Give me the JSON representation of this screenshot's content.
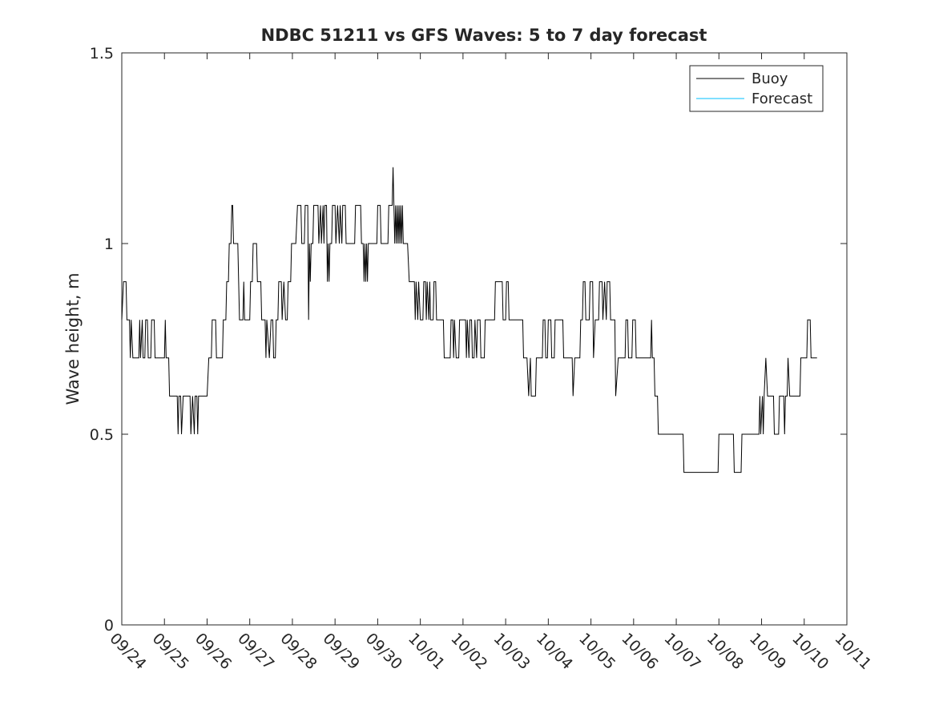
{
  "chart_data": {
    "type": "line",
    "title": "NDBC 51211 vs GFS Waves: 5 to 7 day forecast",
    "xlabel": "",
    "ylabel": "Wave height, m",
    "x_ticks": [
      "09/24",
      "09/25",
      "09/26",
      "09/27",
      "09/28",
      "09/29",
      "09/30",
      "10/01",
      "10/02",
      "10/03",
      "10/04",
      "10/05",
      "10/06",
      "10/07",
      "10/08",
      "10/09",
      "10/10",
      "10/11"
    ],
    "y_ticks": [
      "0",
      "0.5",
      "1",
      "1.5"
    ],
    "ylim": [
      0,
      1.5
    ],
    "x_unit": "days since 09/24 00:00",
    "xlim": [
      0,
      17
    ],
    "grid": false,
    "legend_position": "top-right",
    "series": [
      {
        "name": "Buoy",
        "color": "#000000",
        "points": [
          [
            0.0,
            0.8
          ],
          [
            0.04,
            0.9
          ],
          [
            0.1,
            0.9
          ],
          [
            0.12,
            0.8
          ],
          [
            0.18,
            0.8
          ],
          [
            0.2,
            0.7
          ],
          [
            0.22,
            0.8
          ],
          [
            0.26,
            0.7
          ],
          [
            0.4,
            0.7
          ],
          [
            0.42,
            0.8
          ],
          [
            0.44,
            0.7
          ],
          [
            0.48,
            0.8
          ],
          [
            0.5,
            0.7
          ],
          [
            0.54,
            0.7
          ],
          [
            0.56,
            0.8
          ],
          [
            0.6,
            0.8
          ],
          [
            0.62,
            0.7
          ],
          [
            0.68,
            0.7
          ],
          [
            0.7,
            0.8
          ],
          [
            0.76,
            0.8
          ],
          [
            0.78,
            0.7
          ],
          [
            1.0,
            0.7
          ],
          [
            1.02,
            0.8
          ],
          [
            1.04,
            0.7
          ],
          [
            1.1,
            0.7
          ],
          [
            1.12,
            0.6
          ],
          [
            1.3,
            0.6
          ],
          [
            1.32,
            0.5
          ],
          [
            1.34,
            0.6
          ],
          [
            1.38,
            0.6
          ],
          [
            1.4,
            0.5
          ],
          [
            1.44,
            0.6
          ],
          [
            1.6,
            0.6
          ],
          [
            1.62,
            0.5
          ],
          [
            1.66,
            0.6
          ],
          [
            1.7,
            0.5
          ],
          [
            1.72,
            0.6
          ],
          [
            1.76,
            0.6
          ],
          [
            1.78,
            0.5
          ],
          [
            1.8,
            0.6
          ],
          [
            2.0,
            0.6
          ],
          [
            2.04,
            0.7
          ],
          [
            2.1,
            0.7
          ],
          [
            2.12,
            0.8
          ],
          [
            2.2,
            0.8
          ],
          [
            2.22,
            0.7
          ],
          [
            2.36,
            0.7
          ],
          [
            2.38,
            0.8
          ],
          [
            2.44,
            0.8
          ],
          [
            2.46,
            0.9
          ],
          [
            2.5,
            0.9
          ],
          [
            2.52,
            1.0
          ],
          [
            2.56,
            1.0
          ],
          [
            2.58,
            1.1
          ],
          [
            2.6,
            1.1
          ],
          [
            2.62,
            1.0
          ],
          [
            2.72,
            1.0
          ],
          [
            2.74,
            0.9
          ],
          [
            2.76,
            0.8
          ],
          [
            2.84,
            0.8
          ],
          [
            2.86,
            0.9
          ],
          [
            2.88,
            0.8
          ],
          [
            3.0,
            0.8
          ],
          [
            3.02,
            0.9
          ],
          [
            3.06,
            0.9
          ],
          [
            3.08,
            1.0
          ],
          [
            3.16,
            1.0
          ],
          [
            3.18,
            0.9
          ],
          [
            3.26,
            0.9
          ],
          [
            3.28,
            0.8
          ],
          [
            3.36,
            0.8
          ],
          [
            3.38,
            0.7
          ],
          [
            3.4,
            0.8
          ],
          [
            3.46,
            0.7
          ],
          [
            3.5,
            0.8
          ],
          [
            3.54,
            0.8
          ],
          [
            3.56,
            0.7
          ],
          [
            3.6,
            0.7
          ],
          [
            3.62,
            0.8
          ],
          [
            3.66,
            0.8
          ],
          [
            3.68,
            0.9
          ],
          [
            3.74,
            0.9
          ],
          [
            3.76,
            0.8
          ],
          [
            3.8,
            0.9
          ],
          [
            3.84,
            0.8
          ],
          [
            3.88,
            0.8
          ],
          [
            3.9,
            0.9
          ],
          [
            3.96,
            0.9
          ],
          [
            3.98,
            1.0
          ],
          [
            4.06,
            1.0
          ],
          [
            4.08,
            1.0
          ],
          [
            4.12,
            1.1
          ],
          [
            4.2,
            1.1
          ],
          [
            4.22,
            1.0
          ],
          [
            4.28,
            1.0
          ],
          [
            4.3,
            1.1
          ],
          [
            4.36,
            1.1
          ],
          [
            4.38,
            0.8
          ],
          [
            4.4,
            1.0
          ],
          [
            4.42,
            0.9
          ],
          [
            4.44,
            1.0
          ],
          [
            4.48,
            1.0
          ],
          [
            4.5,
            1.1
          ],
          [
            4.6,
            1.1
          ],
          [
            4.62,
            1.0
          ],
          [
            4.66,
            1.1
          ],
          [
            4.68,
            1.0
          ],
          [
            4.72,
            1.1
          ],
          [
            4.74,
            1.0
          ],
          [
            4.76,
            1.1
          ],
          [
            4.8,
            1.1
          ],
          [
            4.82,
            0.9
          ],
          [
            4.84,
            1.0
          ],
          [
            4.86,
            0.9
          ],
          [
            4.88,
            1.0
          ],
          [
            4.92,
            1.0
          ],
          [
            4.94,
            1.1
          ],
          [
            5.0,
            1.1
          ],
          [
            5.02,
            1.0
          ],
          [
            5.06,
            1.1
          ],
          [
            5.1,
            1.0
          ],
          [
            5.12,
            1.1
          ],
          [
            5.16,
            1.0
          ],
          [
            5.18,
            1.1
          ],
          [
            5.24,
            1.1
          ],
          [
            5.26,
            1.0
          ],
          [
            5.46,
            1.0
          ],
          [
            5.48,
            1.1
          ],
          [
            5.6,
            1.1
          ],
          [
            5.62,
            1.0
          ],
          [
            5.66,
            1.0
          ],
          [
            5.68,
            0.9
          ],
          [
            5.7,
            1.0
          ],
          [
            5.72,
            0.9
          ],
          [
            5.74,
            1.0
          ],
          [
            5.76,
            0.9
          ],
          [
            5.78,
            1.0
          ],
          [
            5.98,
            1.0
          ],
          [
            6.0,
            1.1
          ],
          [
            6.06,
            1.1
          ],
          [
            6.08,
            1.0
          ],
          [
            6.24,
            1.0
          ],
          [
            6.26,
            1.1
          ],
          [
            6.32,
            1.1
          ],
          [
            6.34,
            1.1
          ],
          [
            6.36,
            1.2
          ],
          [
            6.38,
            1.1
          ],
          [
            6.4,
            1.0
          ],
          [
            6.42,
            1.1
          ],
          [
            6.44,
            1.0
          ],
          [
            6.46,
            1.1
          ],
          [
            6.48,
            1.0
          ],
          [
            6.5,
            1.1
          ],
          [
            6.52,
            1.0
          ],
          [
            6.54,
            1.1
          ],
          [
            6.56,
            1.0
          ],
          [
            6.58,
            1.1
          ],
          [
            6.6,
            1.0
          ],
          [
            6.7,
            1.0
          ],
          [
            6.74,
            0.9
          ],
          [
            6.86,
            0.9
          ],
          [
            6.88,
            0.8
          ],
          [
            6.9,
            0.9
          ],
          [
            6.94,
            0.8
          ],
          [
            6.96,
            0.9
          ],
          [
            7.0,
            0.8
          ],
          [
            7.06,
            0.8
          ],
          [
            7.08,
            0.9
          ],
          [
            7.12,
            0.9
          ],
          [
            7.14,
            0.8
          ],
          [
            7.16,
            0.9
          ],
          [
            7.2,
            0.8
          ],
          [
            7.22,
            0.9
          ],
          [
            7.24,
            0.8
          ],
          [
            7.3,
            0.8
          ],
          [
            7.32,
            0.9
          ],
          [
            7.36,
            0.9
          ],
          [
            7.38,
            0.8
          ],
          [
            7.54,
            0.8
          ],
          [
            7.56,
            0.7
          ],
          [
            7.7,
            0.7
          ],
          [
            7.72,
            0.8
          ],
          [
            7.76,
            0.8
          ],
          [
            7.78,
            0.7
          ],
          [
            7.8,
            0.8
          ],
          [
            7.84,
            0.7
          ],
          [
            7.9,
            0.7
          ],
          [
            7.92,
            0.8
          ],
          [
            8.06,
            0.8
          ],
          [
            8.08,
            0.7
          ],
          [
            8.1,
            0.8
          ],
          [
            8.14,
            0.7
          ],
          [
            8.16,
            0.8
          ],
          [
            8.2,
            0.8
          ],
          [
            8.22,
            0.7
          ],
          [
            8.26,
            0.7
          ],
          [
            8.28,
            0.8
          ],
          [
            8.32,
            0.7
          ],
          [
            8.34,
            0.8
          ],
          [
            8.4,
            0.8
          ],
          [
            8.42,
            0.7
          ],
          [
            8.5,
            0.7
          ],
          [
            8.52,
            0.8
          ],
          [
            8.74,
            0.8
          ],
          [
            8.76,
            0.9
          ],
          [
            8.92,
            0.9
          ],
          [
            8.94,
            0.8
          ],
          [
            9.0,
            0.8
          ],
          [
            9.02,
            0.9
          ],
          [
            9.06,
            0.9
          ],
          [
            9.08,
            0.8
          ],
          [
            9.4,
            0.8
          ],
          [
            9.42,
            0.7
          ],
          [
            9.5,
            0.7
          ],
          [
            9.54,
            0.6
          ],
          [
            9.58,
            0.7
          ],
          [
            9.6,
            0.6
          ],
          [
            9.7,
            0.6
          ],
          [
            9.72,
            0.7
          ],
          [
            9.86,
            0.7
          ],
          [
            9.88,
            0.8
          ],
          [
            9.92,
            0.8
          ],
          [
            9.94,
            0.7
          ],
          [
            9.98,
            0.7
          ],
          [
            10.0,
            0.8
          ],
          [
            10.06,
            0.8
          ],
          [
            10.08,
            0.7
          ],
          [
            10.14,
            0.7
          ],
          [
            10.16,
            0.8
          ],
          [
            10.34,
            0.8
          ],
          [
            10.36,
            0.7
          ],
          [
            10.56,
            0.7
          ],
          [
            10.58,
            0.6
          ],
          [
            10.62,
            0.7
          ],
          [
            10.74,
            0.7
          ],
          [
            10.76,
            0.8
          ],
          [
            10.8,
            0.8
          ],
          [
            10.82,
            0.9
          ],
          [
            10.86,
            0.9
          ],
          [
            10.88,
            0.8
          ],
          [
            10.96,
            0.8
          ],
          [
            10.98,
            0.9
          ],
          [
            11.04,
            0.9
          ],
          [
            11.06,
            0.7
          ],
          [
            11.1,
            0.8
          ],
          [
            11.18,
            0.8
          ],
          [
            11.2,
            0.9
          ],
          [
            11.26,
            0.9
          ],
          [
            11.28,
            0.8
          ],
          [
            11.32,
            0.9
          ],
          [
            11.36,
            0.8
          ],
          [
            11.38,
            0.9
          ],
          [
            11.44,
            0.9
          ],
          [
            11.46,
            0.8
          ],
          [
            11.56,
            0.8
          ],
          [
            11.58,
            0.6
          ],
          [
            11.64,
            0.7
          ],
          [
            11.8,
            0.7
          ],
          [
            11.82,
            0.8
          ],
          [
            11.86,
            0.8
          ],
          [
            11.88,
            0.7
          ],
          [
            11.96,
            0.7
          ],
          [
            11.98,
            0.8
          ],
          [
            12.04,
            0.8
          ],
          [
            12.06,
            0.7
          ],
          [
            12.4,
            0.7
          ],
          [
            12.42,
            0.8
          ],
          [
            12.44,
            0.7
          ],
          [
            12.48,
            0.7
          ],
          [
            12.5,
            0.6
          ],
          [
            12.56,
            0.6
          ],
          [
            12.58,
            0.5
          ],
          [
            13.16,
            0.5
          ],
          [
            13.18,
            0.4
          ],
          [
            13.98,
            0.4
          ],
          [
            14.0,
            0.5
          ],
          [
            14.34,
            0.5
          ],
          [
            14.36,
            0.4
          ],
          [
            14.52,
            0.4
          ],
          [
            14.54,
            0.5
          ],
          [
            14.94,
            0.5
          ],
          [
            14.96,
            0.6
          ],
          [
            14.98,
            0.5
          ],
          [
            15.02,
            0.6
          ],
          [
            15.04,
            0.5
          ],
          [
            15.06,
            0.6
          ],
          [
            15.1,
            0.7
          ],
          [
            15.14,
            0.6
          ],
          [
            15.28,
            0.6
          ],
          [
            15.3,
            0.5
          ],
          [
            15.4,
            0.5
          ],
          [
            15.42,
            0.6
          ],
          [
            15.52,
            0.6
          ],
          [
            15.54,
            0.5
          ],
          [
            15.56,
            0.6
          ],
          [
            15.6,
            0.6
          ],
          [
            15.62,
            0.7
          ],
          [
            15.66,
            0.6
          ],
          [
            15.9,
            0.6
          ],
          [
            15.92,
            0.7
          ],
          [
            16.06,
            0.7
          ],
          [
            16.08,
            0.8
          ],
          [
            16.14,
            0.8
          ],
          [
            16.16,
            0.7
          ],
          [
            16.3,
            0.7
          ]
        ]
      },
      {
        "name": "Forecast",
        "color": "#00bfff",
        "points": []
      }
    ]
  }
}
